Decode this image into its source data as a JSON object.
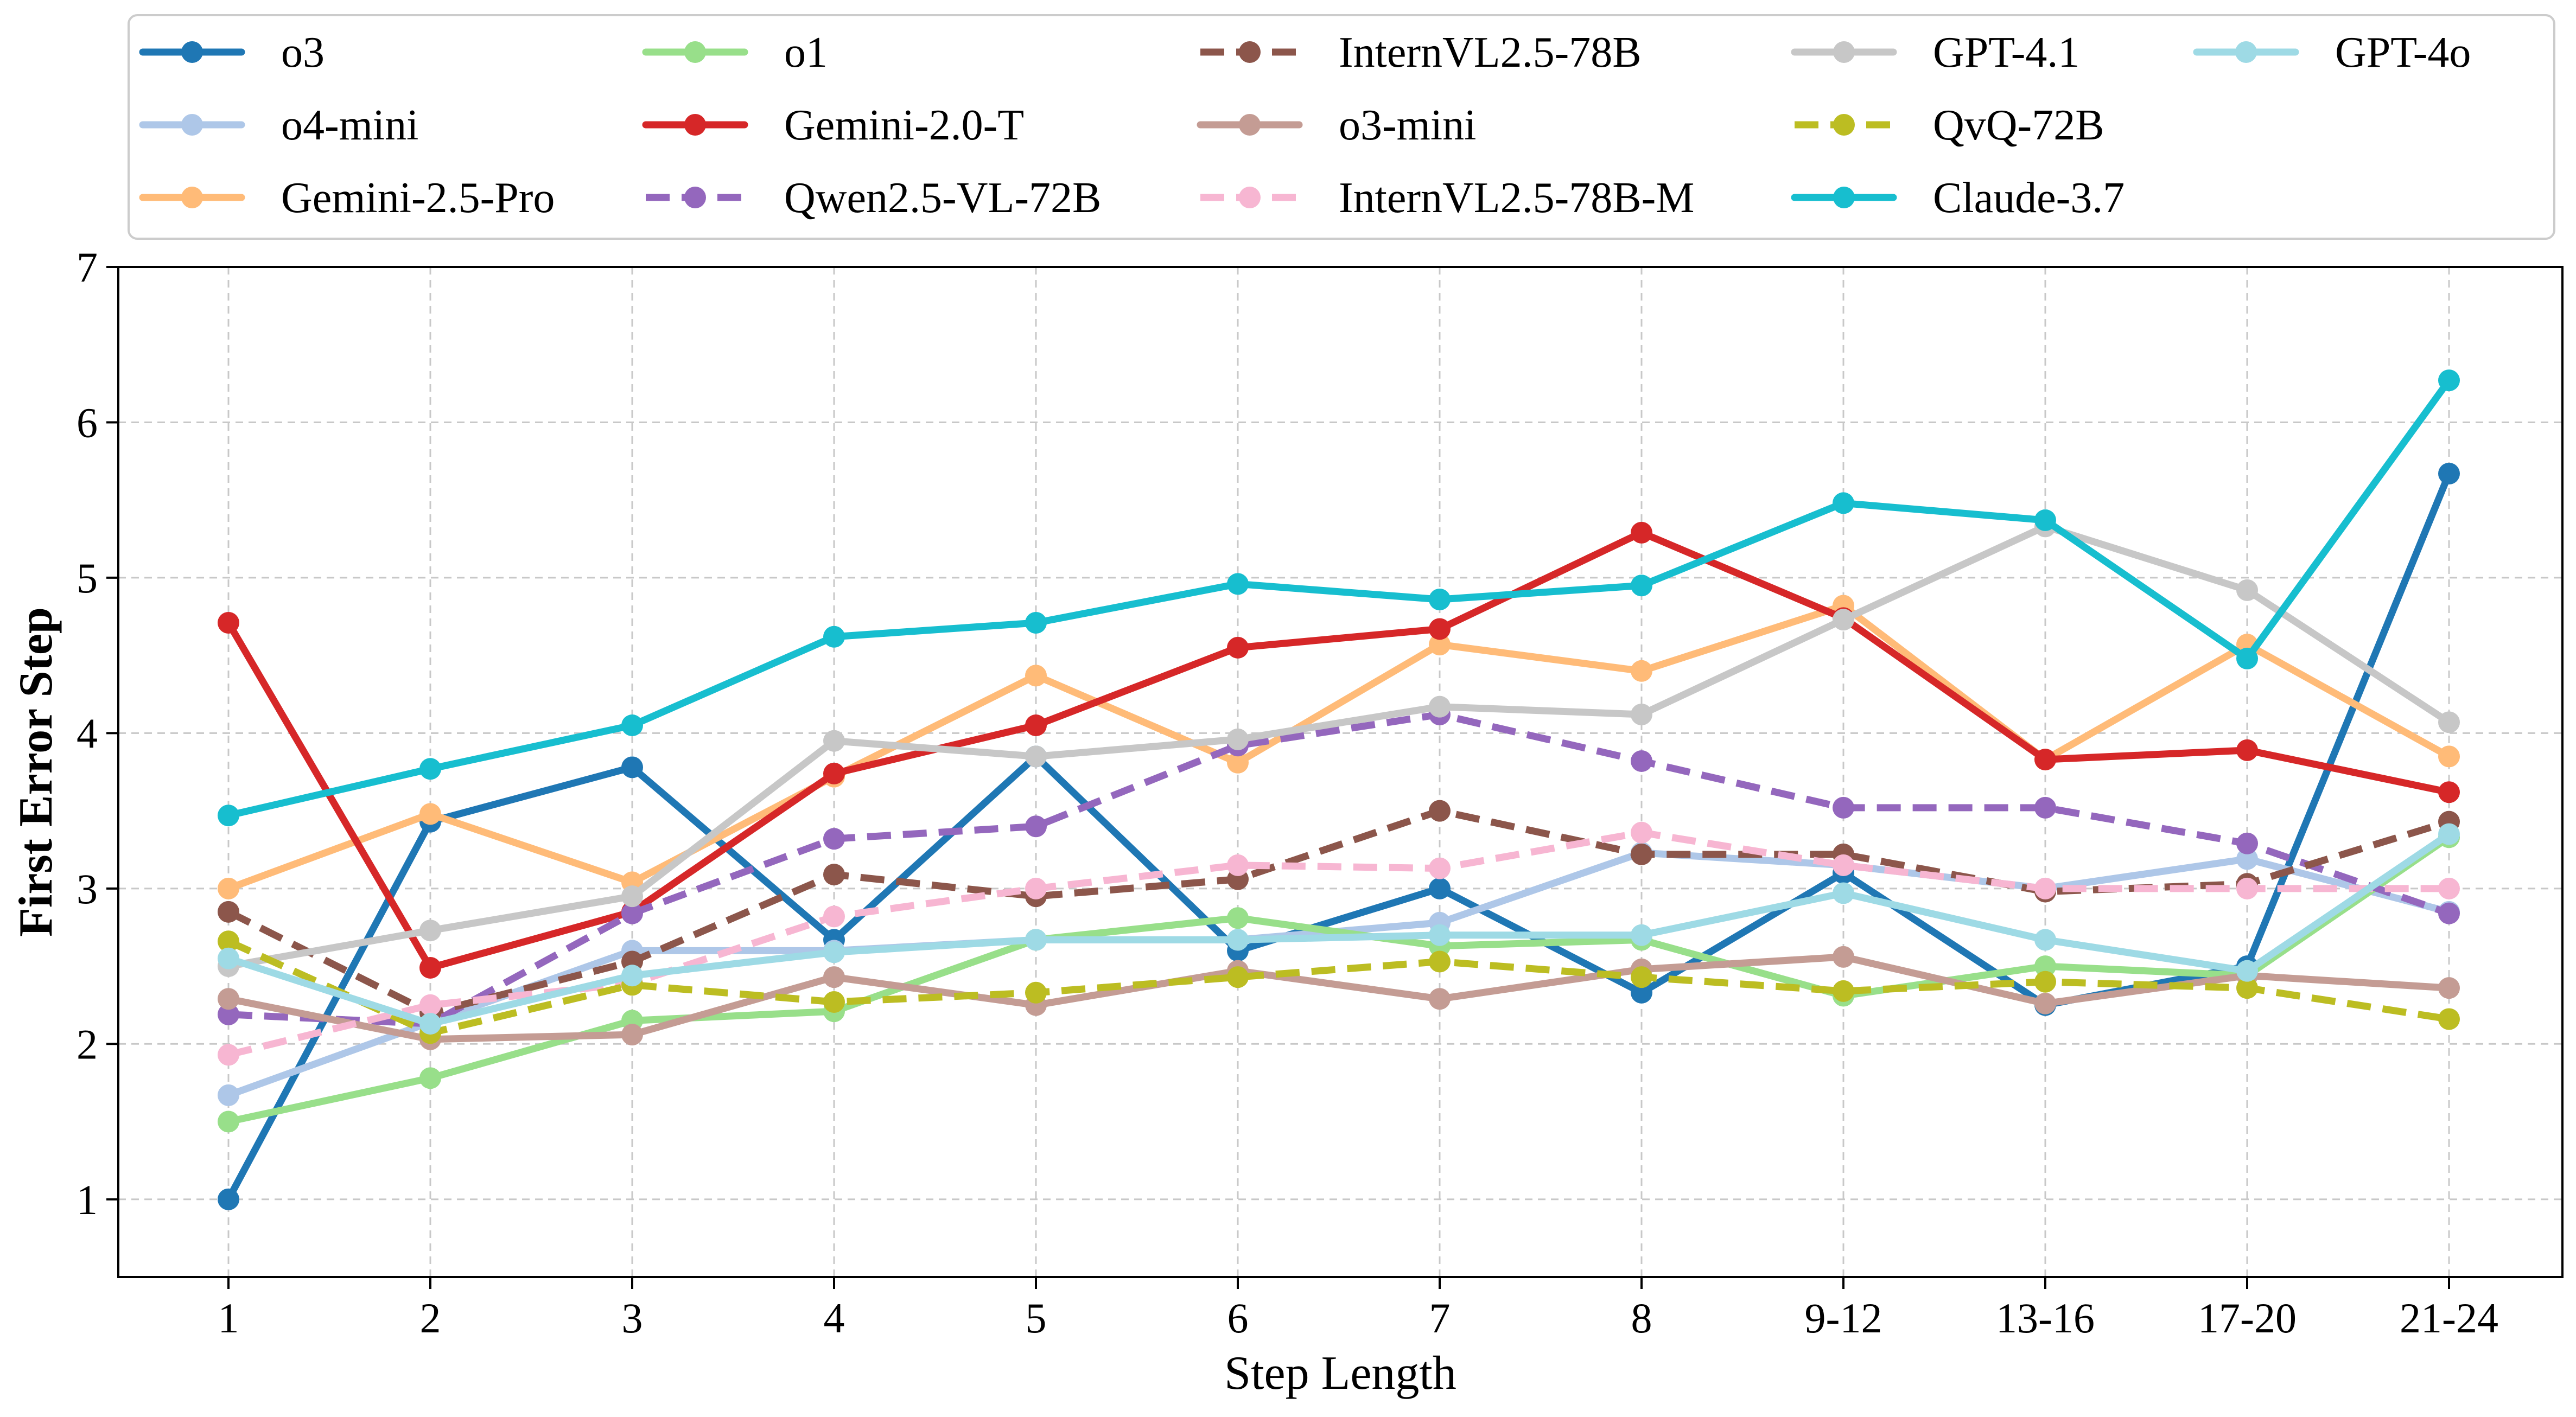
{
  "chart_data": {
    "type": "line",
    "title": "",
    "xlabel": "Step Length",
    "ylabel": "First Error Step",
    "ylim": [
      0.5,
      7
    ],
    "yticks": [
      1,
      2,
      3,
      4,
      5,
      6,
      7
    ],
    "grid": true,
    "legend_position": "top",
    "categories": [
      "1",
      "2",
      "3",
      "4",
      "5",
      "6",
      "7",
      "8",
      "9-12",
      "13-16",
      "17-20",
      "21-24"
    ],
    "series": [
      {
        "name": "o3",
        "color": "#1f77b4",
        "dashed": false,
        "values": [
          1.0,
          3.43,
          3.78,
          2.67,
          3.85,
          2.6,
          3.0,
          2.33,
          3.1,
          2.25,
          2.5,
          5.67
        ]
      },
      {
        "name": "o4-mini",
        "color": "#aec7e8",
        "dashed": false,
        "values": [
          1.67,
          2.14,
          2.6,
          2.6,
          2.67,
          2.67,
          2.78,
          3.23,
          3.15,
          3.0,
          3.19,
          2.85
        ]
      },
      {
        "name": "Gemini-2.5-Pro",
        "color": "#ffbb78",
        "dashed": false,
        "values": [
          3.0,
          3.48,
          3.04,
          3.72,
          4.37,
          3.81,
          4.57,
          4.4,
          4.82,
          3.83,
          4.57,
          3.85
        ]
      },
      {
        "name": "o1",
        "color": "#98df8a",
        "dashed": false,
        "values": [
          1.5,
          1.78,
          2.15,
          2.21,
          2.67,
          2.81,
          2.63,
          2.67,
          2.31,
          2.5,
          2.44,
          3.33
        ]
      },
      {
        "name": "Gemini-2.0-T",
        "color": "#d62728",
        "dashed": false,
        "values": [
          4.71,
          2.49,
          2.85,
          3.74,
          4.05,
          4.55,
          4.67,
          5.29,
          4.74,
          3.83,
          3.89,
          3.62
        ]
      },
      {
        "name": "Qwen2.5-VL-72B",
        "color": "#9467bd",
        "dashed": true,
        "values": [
          2.19,
          2.13,
          2.84,
          3.32,
          3.4,
          3.92,
          4.12,
          3.82,
          3.52,
          3.52,
          3.29,
          2.84
        ]
      },
      {
        "name": "InternVL2.5-78B",
        "color": "#8c564b",
        "dashed": true,
        "values": [
          2.85,
          2.2,
          2.53,
          3.09,
          2.95,
          3.06,
          3.5,
          3.22,
          3.22,
          2.98,
          3.03,
          3.43
        ]
      },
      {
        "name": "o3-mini",
        "color": "#c49c94",
        "dashed": false,
        "values": [
          2.29,
          2.03,
          2.06,
          2.43,
          2.25,
          2.47,
          2.29,
          2.48,
          2.56,
          2.26,
          2.44,
          2.36
        ]
      },
      {
        "name": "InternVL2.5-78B-M",
        "color": "#f7b6d2",
        "dashed": true,
        "values": [
          1.93,
          2.25,
          2.39,
          2.82,
          3.0,
          3.15,
          3.13,
          3.36,
          3.15,
          3.0,
          3.0,
          3.0
        ]
      },
      {
        "name": "GPT-4.1",
        "color": "#c7c7c7",
        "dashed": false,
        "values": [
          2.5,
          2.73,
          2.95,
          3.95,
          3.85,
          3.96,
          4.17,
          4.12,
          4.73,
          5.33,
          4.92,
          4.07
        ]
      },
      {
        "name": "QvQ-72B",
        "color": "#bcbd22",
        "dashed": true,
        "values": [
          2.66,
          2.07,
          2.38,
          2.27,
          2.33,
          2.43,
          2.53,
          2.43,
          2.34,
          2.4,
          2.36,
          2.16
        ]
      },
      {
        "name": "Claude-3.7",
        "color": "#17becf",
        "dashed": false,
        "values": [
          3.47,
          3.77,
          4.05,
          4.62,
          4.71,
          4.96,
          4.86,
          4.95,
          5.48,
          5.37,
          4.48,
          6.27
        ]
      },
      {
        "name": "GPT-4o",
        "color": "#9edae5",
        "dashed": false,
        "values": [
          2.55,
          2.13,
          2.44,
          2.59,
          2.67,
          2.67,
          2.7,
          2.7,
          2.97,
          2.67,
          2.47,
          3.35
        ]
      }
    ]
  }
}
